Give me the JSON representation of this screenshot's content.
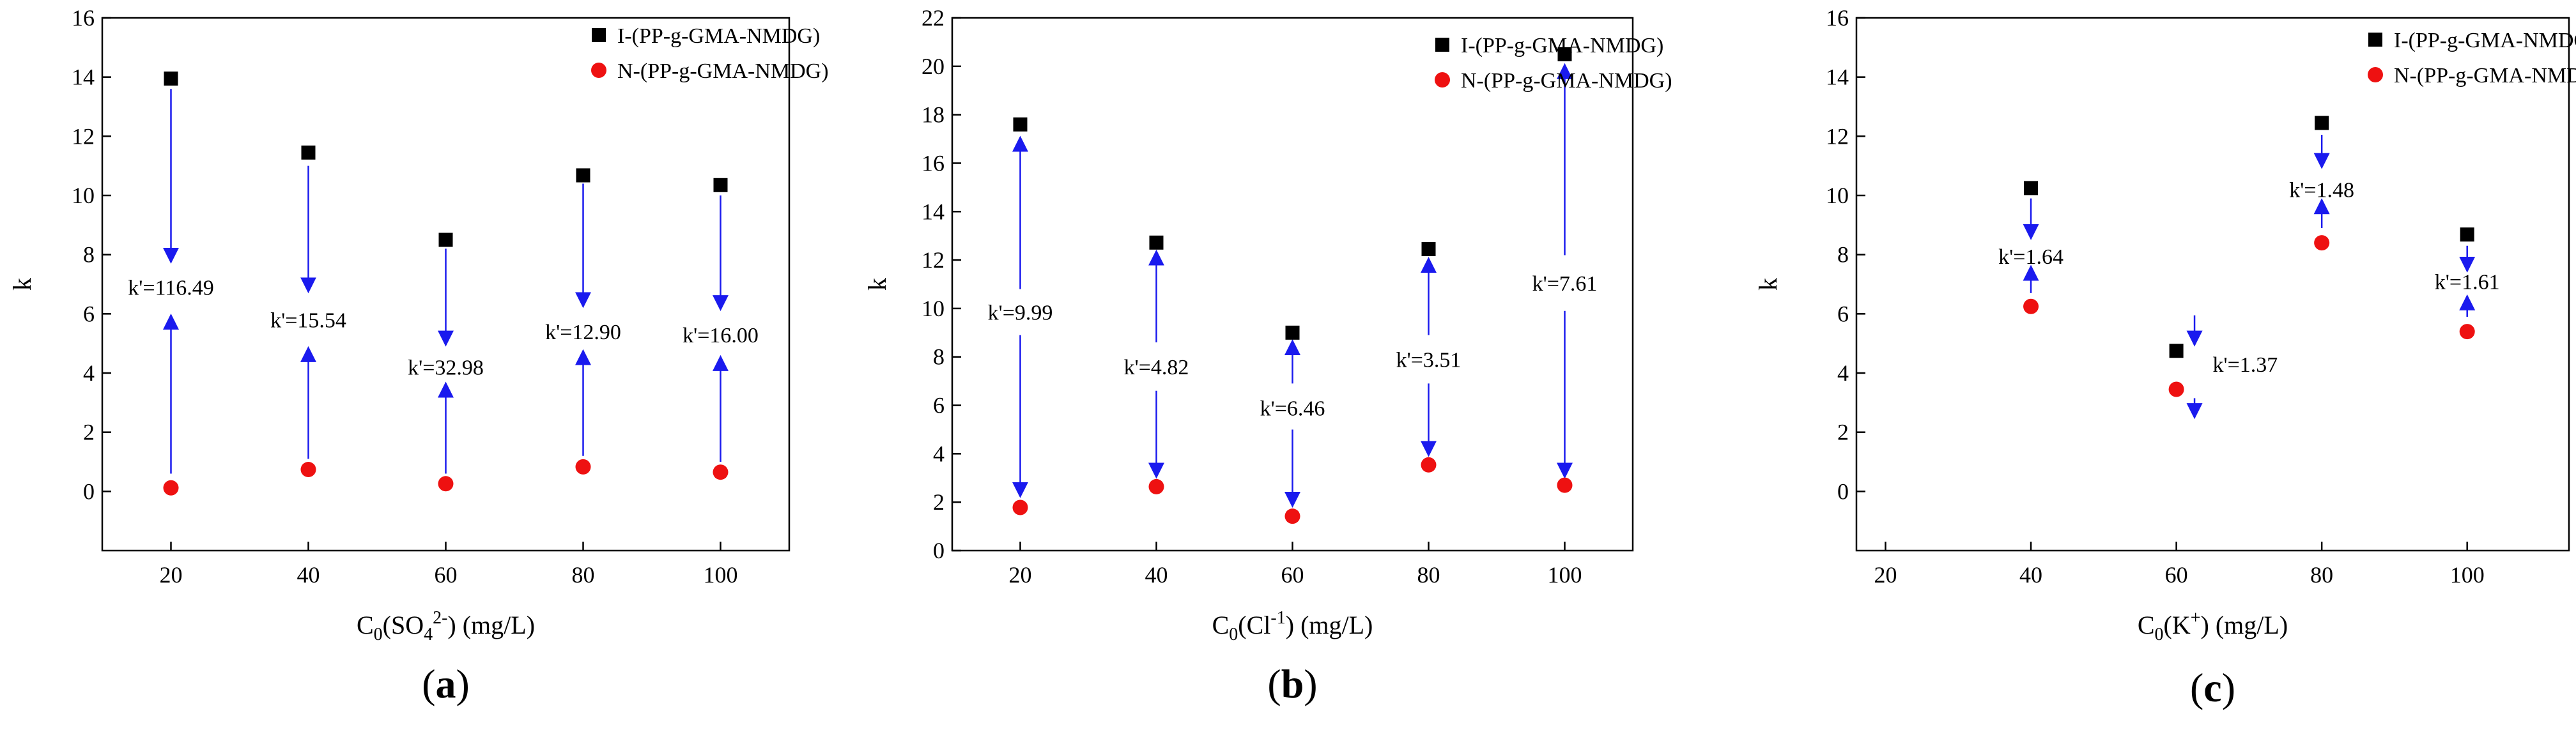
{
  "legend": {
    "series_i": "I-(PP-g-GMA-NMDG)",
    "series_n": "N-(PP-g-GMA-NMDG)"
  },
  "colors": {
    "series_i": "#000000",
    "series_n": "#ee1111",
    "arrow": "#1a1aee",
    "axis": "#000000"
  },
  "chart_data": [
    {
      "type": "scatter",
      "panel_label": "a",
      "panel_prefix": "(",
      "panel_suffix": ")",
      "ylabel": "k",
      "xlabel_parts": {
        "base": "C",
        "sub": "0",
        "open": "(SO",
        "sub2": "4",
        "sup": "2-",
        "close": ")",
        "unit": " (mg/L)"
      },
      "xlim": [
        10,
        110
      ],
      "ylim": [
        -2,
        16
      ],
      "xticks": [
        20,
        40,
        60,
        80,
        100
      ],
      "yticks": [
        0,
        2,
        4,
        6,
        8,
        10,
        12,
        14,
        16
      ],
      "x": [
        20,
        40,
        60,
        80,
        100
      ],
      "series": [
        {
          "name": "I-(PP-g-GMA-NMDG)",
          "values": [
            13.95,
            11.45,
            8.5,
            10.68,
            10.35
          ]
        },
        {
          "name": "N-(PP-g-GMA-NMDG)",
          "values": [
            0.12,
            0.74,
            0.26,
            0.83,
            0.65
          ]
        }
      ],
      "annotations": [
        {
          "x": 20,
          "text": "k'=116.49",
          "y": 6.9,
          "up": [
            0.6,
            5.9
          ],
          "down": [
            13.6,
            7.8
          ]
        },
        {
          "x": 40,
          "text": "k'=15.54",
          "y": 5.8,
          "up": [
            1.1,
            4.8
          ],
          "down": [
            11.0,
            6.8
          ]
        },
        {
          "x": 60,
          "text": "k'=32.98",
          "y": 4.2,
          "up": [
            0.6,
            3.6
          ],
          "down": [
            8.2,
            5.0
          ]
        },
        {
          "x": 80,
          "text": "k'=12.90",
          "y": 5.4,
          "up": [
            1.2,
            4.7
          ],
          "down": [
            10.4,
            6.3
          ]
        },
        {
          "x": 100,
          "text": "k'=16.00",
          "y": 5.3,
          "up": [
            1.0,
            4.5
          ],
          "down": [
            10.0,
            6.2
          ]
        }
      ]
    },
    {
      "type": "scatter",
      "panel_label": "b",
      "panel_prefix": "(",
      "panel_suffix": ")",
      "ylabel": "k",
      "xlabel_parts": {
        "base": "C",
        "sub": "0",
        "open": "(Cl",
        "sup": "-1",
        "close": ")",
        "unit": " (mg/L)"
      },
      "xlim": [
        10,
        110
      ],
      "ylim": [
        0,
        22
      ],
      "xticks": [
        20,
        40,
        60,
        80,
        100
      ],
      "yticks": [
        0,
        2,
        4,
        6,
        8,
        10,
        12,
        14,
        16,
        18,
        20,
        22
      ],
      "x": [
        20,
        40,
        60,
        80,
        100
      ],
      "series": [
        {
          "name": "I-(PP-g-GMA-NMDG)",
          "values": [
            17.6,
            12.72,
            9.0,
            12.45,
            20.5
          ]
        },
        {
          "name": "N-(PP-g-GMA-NMDG)",
          "values": [
            1.78,
            2.64,
            1.42,
            3.54,
            2.7
          ]
        }
      ],
      "annotations": [
        {
          "x": 20,
          "text": "k'=9.99",
          "y": 9.85,
          "up": [
            10.8,
            17.0
          ],
          "down": [
            8.9,
            2.3
          ]
        },
        {
          "x": 40,
          "text": "k'=4.82",
          "y": 7.6,
          "up": [
            8.6,
            12.3
          ],
          "down": [
            6.6,
            3.1
          ]
        },
        {
          "x": 60,
          "text": "k'=6.46",
          "y": 5.9,
          "up": [
            6.9,
            8.6
          ],
          "down": [
            5.0,
            1.9
          ]
        },
        {
          "x": 80,
          "text": "k'=3.51",
          "y": 7.9,
          "up": [
            8.9,
            12.0
          ],
          "down": [
            6.9,
            4.0
          ]
        },
        {
          "x": 100,
          "text": "k'=7.61",
          "y": 11.05,
          "up": [
            12.2,
            20.0
          ],
          "down": [
            9.9,
            3.1
          ]
        }
      ]
    },
    {
      "type": "scatter",
      "panel_label": "c",
      "panel_prefix": "(",
      "panel_suffix": ")",
      "ylabel": "k",
      "xlabel_parts": {
        "base": "C",
        "sub": "0",
        "open": "(K",
        "sup": "+",
        "close": ")",
        "unit": " (mg/L)"
      },
      "xlim": [
        16,
        114
      ],
      "ylim": [
        -2,
        16
      ],
      "xticks": [
        20,
        40,
        60,
        80,
        100
      ],
      "yticks": [
        0,
        2,
        4,
        6,
        8,
        10,
        12,
        14,
        16
      ],
      "x": [
        40,
        60,
        80,
        100
      ],
      "series": [
        {
          "name": "I-(PP-g-GMA-NMDG)",
          "values": [
            10.25,
            4.75,
            12.45,
            8.68
          ]
        },
        {
          "name": "N-(PP-g-GMA-NMDG)",
          "values": [
            6.25,
            3.45,
            8.4,
            5.4
          ]
        }
      ],
      "annotations": [
        {
          "x": 40,
          "text": "k'=1.64",
          "y": 7.95,
          "up": [
            6.7,
            7.55
          ],
          "down": [
            9.9,
            8.6
          ]
        },
        {
          "x": 60,
          "text": "k'=1.37",
          "y": 4.3,
          "up": [
            3.15,
            2.55
          ],
          "down": [
            5.95,
            5.0
          ],
          "arrow_x": 62.5,
          "text_x": 65
        },
        {
          "x": 80,
          "text": "k'=1.48",
          "y": 10.2,
          "up": [
            8.9,
            9.8
          ],
          "down": [
            12.05,
            11.0
          ]
        },
        {
          "x": 100,
          "text": "k'=1.61",
          "y": 7.1,
          "up": [
            5.9,
            6.55
          ],
          "down": [
            8.3,
            7.5
          ]
        }
      ]
    }
  ]
}
